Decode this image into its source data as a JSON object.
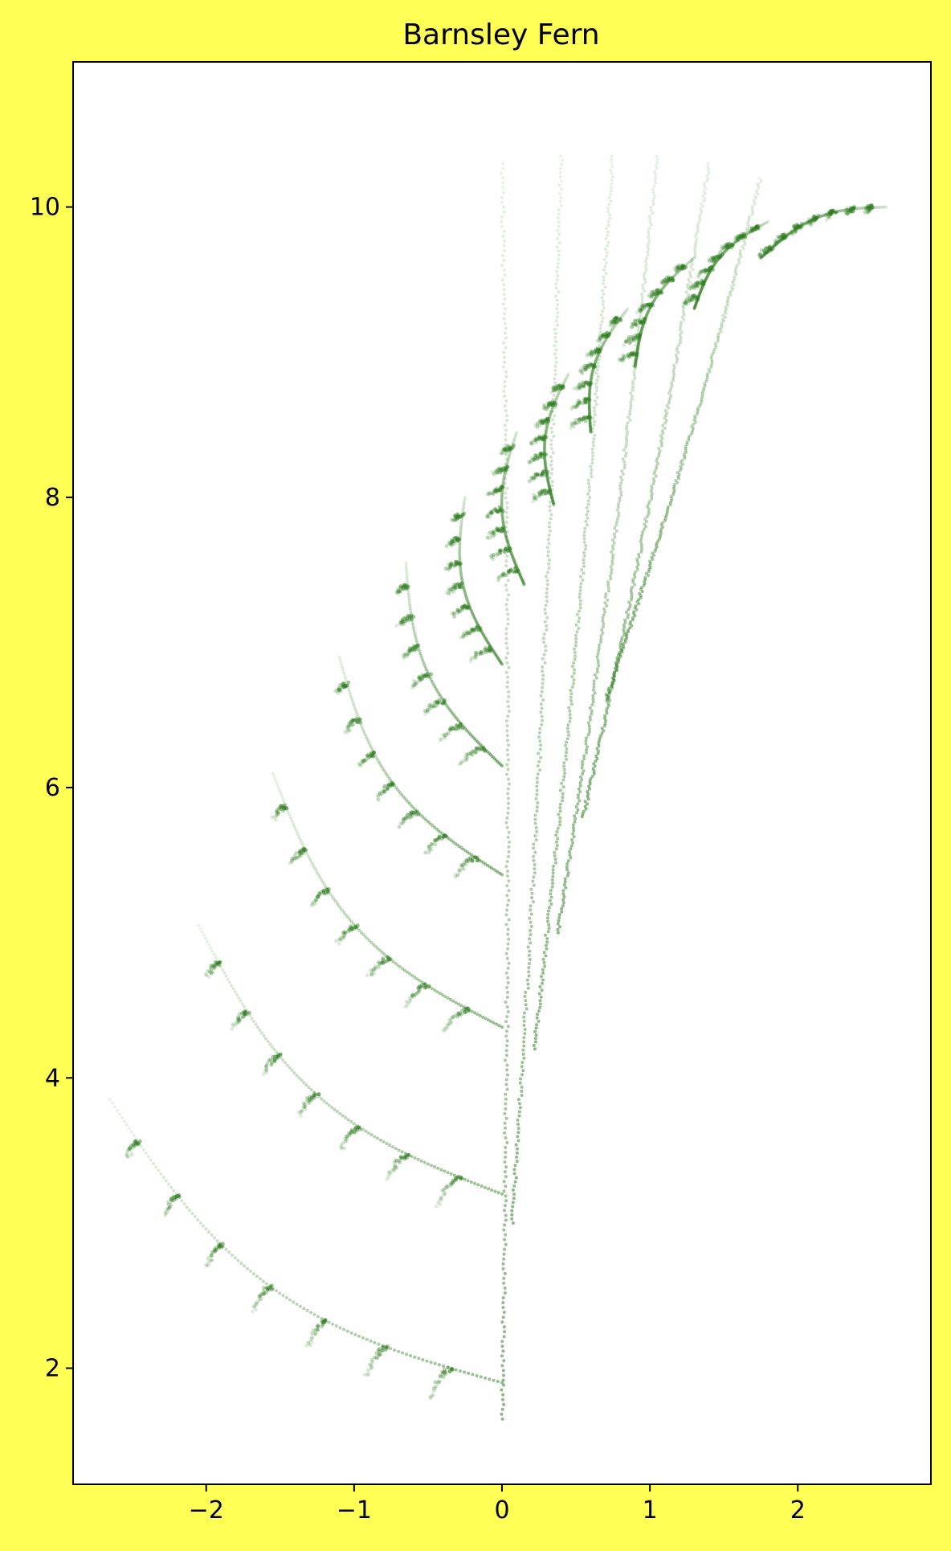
{
  "chart_data": {
    "type": "scatter",
    "title": "Barnsley Fern",
    "xlabel": "",
    "ylabel": "",
    "xlim": [
      -2.9,
      2.9
    ],
    "ylim": [
      1.2,
      11.0
    ],
    "x_ticks": [
      {
        "value": -2,
        "label": "−2"
      },
      {
        "value": -1,
        "label": "−1"
      },
      {
        "value": 0,
        "label": "0"
      },
      {
        "value": 1,
        "label": "1"
      },
      {
        "value": 2,
        "label": "2"
      }
    ],
    "y_ticks": [
      {
        "value": 2,
        "label": "2"
      },
      {
        "value": 4,
        "label": "4"
      },
      {
        "value": 6,
        "label": "6"
      },
      {
        "value": 8,
        "label": "8"
      },
      {
        "value": 10,
        "label": "10"
      }
    ],
    "grid": false,
    "marker_color": "#2e7d1f",
    "figure_background": "#ffff55",
    "axes_background": "#ffffff",
    "fronds": [
      {
        "base": [
          0.0,
          1.9
        ],
        "tip": [
          -2.65,
          3.85
        ]
      },
      {
        "base": [
          0.0,
          3.2
        ],
        "tip": [
          -2.05,
          5.05
        ]
      },
      {
        "base": [
          0.0,
          4.35
        ],
        "tip": [
          -1.55,
          6.1
        ]
      },
      {
        "base": [
          0.0,
          5.4
        ],
        "tip": [
          -1.1,
          6.9
        ]
      },
      {
        "base": [
          0.0,
          6.15
        ],
        "tip": [
          -0.65,
          7.55
        ]
      },
      {
        "base": [
          0.0,
          6.85
        ],
        "tip": [
          -0.25,
          8.0
        ]
      },
      {
        "base": [
          0.15,
          7.4
        ],
        "tip": [
          0.1,
          8.45
        ]
      },
      {
        "base": [
          0.35,
          7.95
        ],
        "tip": [
          0.45,
          8.85
        ]
      },
      {
        "base": [
          0.6,
          8.45
        ],
        "tip": [
          0.85,
          9.3
        ]
      },
      {
        "base": [
          0.9,
          8.9
        ],
        "tip": [
          1.3,
          9.65
        ]
      },
      {
        "base": [
          1.3,
          9.3
        ],
        "tip": [
          1.8,
          9.9
        ]
      },
      {
        "base": [
          1.75,
          9.65
        ],
        "tip": [
          2.6,
          10.0
        ]
      }
    ],
    "stems": [
      {
        "x0": 0.0,
        "y0": 1.65,
        "x1": 0.0,
        "y1": 10.3
      },
      {
        "x0": 0.07,
        "y0": 3.0,
        "x1": 0.4,
        "y1": 10.35
      },
      {
        "x0": 0.22,
        "y0": 4.2,
        "x1": 0.75,
        "y1": 10.35
      },
      {
        "x0": 0.38,
        "y0": 5.0,
        "x1": 1.05,
        "y1": 10.35
      },
      {
        "x0": 0.55,
        "y0": 5.8,
        "x1": 1.4,
        "y1": 10.3
      },
      {
        "x0": 0.7,
        "y0": 6.6,
        "x1": 1.75,
        "y1": 10.2
      }
    ]
  }
}
